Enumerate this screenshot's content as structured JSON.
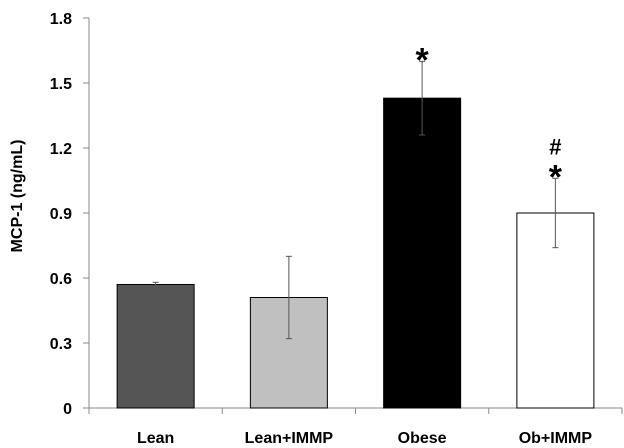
{
  "chart_data": {
    "type": "bar",
    "title": "",
    "xlabel": "",
    "ylabel": "MCP-1 (ng/mL)",
    "ylim": [
      0,
      1.8
    ],
    "yticks": [
      "0",
      "0.3",
      "0.6",
      "0.9",
      "1.2",
      "1.5",
      "1.8"
    ],
    "categories": [
      "Lean",
      "Lean+IMMP",
      "Obese",
      "Ob+IMMP"
    ],
    "values": [
      0.57,
      0.51,
      1.43,
      0.9
    ],
    "errors": [
      0.01,
      0.19,
      0.17,
      0.16
    ],
    "colors": [
      "#555555",
      "#c0c0c0",
      "#000000",
      "#ffffff"
    ],
    "annotations": [
      {
        "category": "Obese",
        "symbols": [
          "*"
        ]
      },
      {
        "category": "Ob+IMMP",
        "symbols": [
          "#",
          "*"
        ]
      }
    ],
    "grid": false,
    "legend": "none"
  }
}
